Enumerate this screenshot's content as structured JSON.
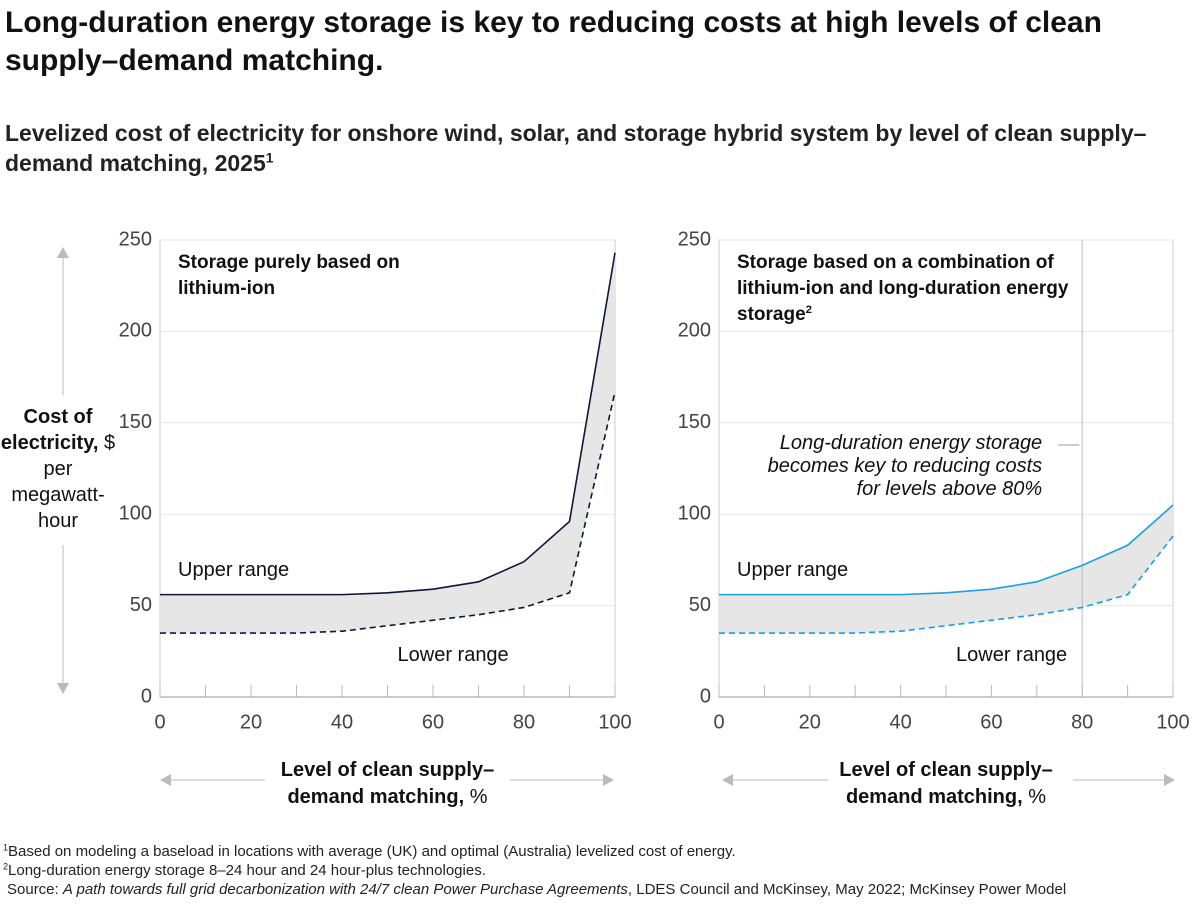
{
  "title": "Long-duration energy storage is key to reducing costs at high levels of clean supply–demand matching.",
  "subtitle": "Levelized cost of electricity for onshore wind, solar, and storage hybrid system by level of clean supply–demand matching, 2025",
  "subtitle_note": "1",
  "y_axis_label": {
    "bold": "Cost of electricity,",
    "rest": "$ per megawatt-hour"
  },
  "chart_data": [
    {
      "type": "range-line",
      "panel_title": "Storage purely based on lithium-ion",
      "x": [
        0,
        10,
        20,
        30,
        40,
        50,
        60,
        70,
        80,
        90,
        100
      ],
      "series": [
        {
          "name": "Upper range",
          "color": "#0b1a33",
          "line_style": "solid",
          "values": [
            56,
            56,
            56,
            56,
            56,
            57,
            59,
            63,
            74,
            96,
            243
          ]
        },
        {
          "name": "Lower range",
          "color": "#0b1a33",
          "line_style": "dashed",
          "values": [
            35,
            35,
            35,
            35,
            36,
            39,
            42,
            45,
            49,
            57,
            167
          ]
        }
      ],
      "band_color": "#e6e6e6",
      "xlim": [
        0,
        100
      ],
      "xticks": [
        0,
        20,
        40,
        60,
        80,
        100
      ],
      "ylim": [
        0,
        250
      ],
      "yticks": [
        0,
        50,
        100,
        150,
        200,
        250
      ],
      "grid": true,
      "x_axis_label": {
        "bold": "Level of clean supply–demand matching,",
        "rest": "%"
      }
    },
    {
      "type": "range-line",
      "panel_title": "Storage based on a combination of lithium-ion and long-duration energy storage",
      "panel_title_note": "2",
      "x": [
        0,
        10,
        20,
        30,
        40,
        50,
        60,
        70,
        80,
        90,
        100
      ],
      "series": [
        {
          "name": "Upper range",
          "color": "#1a9fe3",
          "line_style": "solid",
          "values": [
            56,
            56,
            56,
            56,
            56,
            57,
            59,
            63,
            72,
            83,
            105
          ]
        },
        {
          "name": "Lower range",
          "color": "#1a9fe3",
          "line_style": "dashed",
          "values": [
            35,
            35,
            35,
            35,
            36,
            39,
            42,
            45,
            49,
            56,
            88
          ]
        }
      ],
      "band_color": "#e6e6e6",
      "xlim": [
        0,
        100
      ],
      "xticks": [
        0,
        20,
        40,
        60,
        80,
        100
      ],
      "ylim": [
        0,
        250
      ],
      "yticks": [
        0,
        50,
        100,
        150,
        200,
        250
      ],
      "grid": true,
      "annotation": {
        "lines": [
          "Long-duration energy storage",
          "becomes key to reducing costs",
          "for levels above 80%"
        ],
        "x": 80
      },
      "x_axis_label": {
        "bold": "Level of clean supply–demand matching,",
        "rest": "%"
      }
    }
  ],
  "footnotes": [
    {
      "marker": "1",
      "text": "Based on modeling a baseload in locations with average (UK) and optimal (Australia) levelized cost of energy."
    },
    {
      "marker": "2",
      "text": "Long-duration energy storage 8–24 hour and 24 hour-plus technologies."
    }
  ],
  "source": {
    "label": "Source:",
    "title": "A path towards full grid decarbonization with 24/7 clean Power Purchase Agreements",
    "rest": ", LDES Council and McKinsey, May 2022; McKinsey Power Model"
  }
}
